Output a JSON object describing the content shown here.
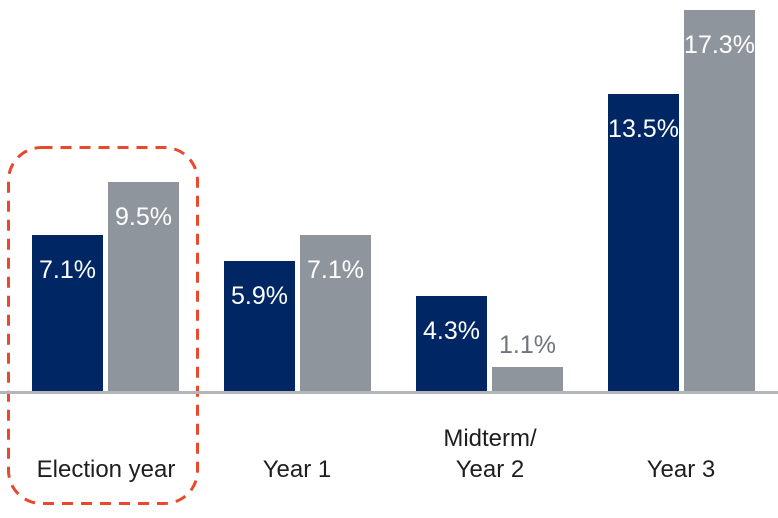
{
  "chart_data": {
    "type": "bar",
    "title": "",
    "categories": [
      "Election year",
      "Year 1",
      "Midterm/\nYear 2",
      "Year 3"
    ],
    "series": [
      {
        "name": "navy-series",
        "color": "#002664",
        "values": [
          7.1,
          5.9,
          4.3,
          13.5
        ],
        "labels": [
          "7.1%",
          "5.9%",
          "4.3%",
          "13.5%"
        ]
      },
      {
        "name": "gray-series",
        "color": "#8F959D",
        "values": [
          9.5,
          7.1,
          1.1,
          17.3
        ],
        "labels": [
          "9.5%",
          "7.1%",
          "1.1%",
          "17.3%"
        ]
      }
    ],
    "ylim": [
      0,
      17.8
    ],
    "grid": false,
    "legend": "none",
    "axis_line_color": "#B3B6B9",
    "value_label_color_inside": "#FFFFFF",
    "value_label_color_outside": "#70757C",
    "category_label_color": "#1E1E1E",
    "highlight_box": {
      "category": "Election year",
      "color": "#E8492C",
      "style": "dashed-rounded-rect"
    }
  }
}
